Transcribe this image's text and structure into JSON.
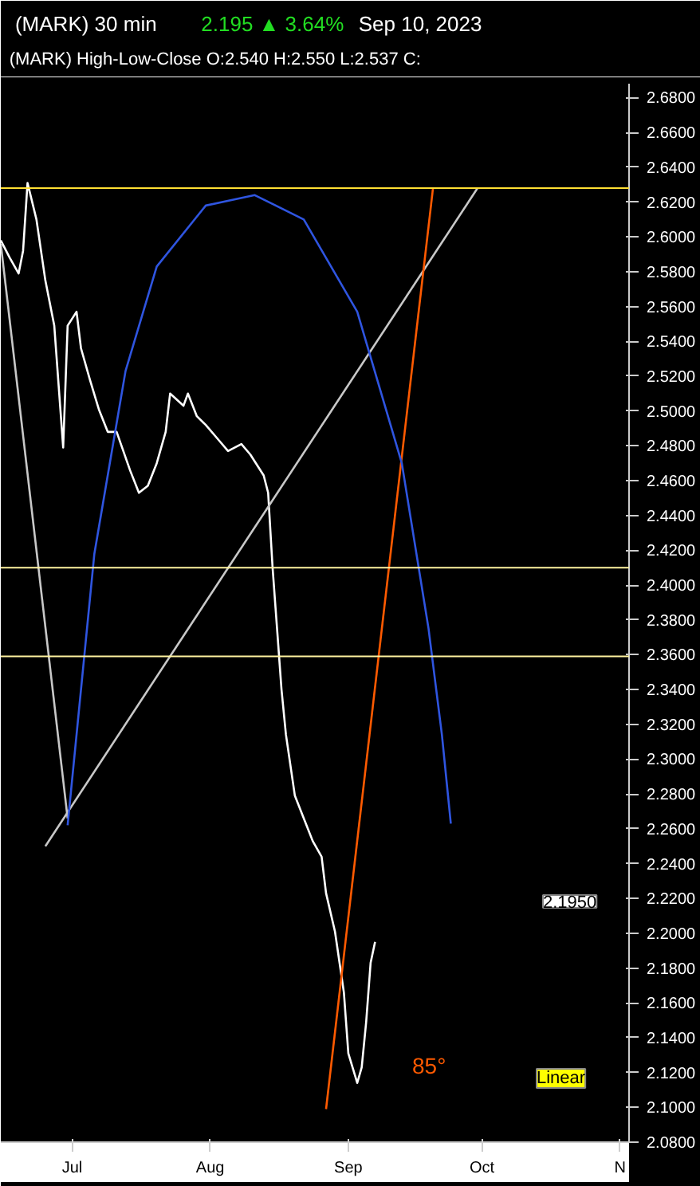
{
  "chart_data": {
    "type": "line",
    "title": "(MARK)   30 min",
    "annotations": [
      "2.195 ▲ 3.64%",
      "Sep 10, 2023",
      "(MARK)  High-Low-Close   O:2.540  H:2.550  L:2.537  C:",
      "2.1950",
      "Linear",
      "85°"
    ],
    "x": [
      "2023-06-15",
      "2023-06-17",
      "2023-06-19",
      "2023-06-20",
      "2023-06-21",
      "2023-06-23",
      "2023-06-25",
      "2023-06-27",
      "2023-06-28",
      "2023-06-29",
      "2023-06-30",
      "2023-07-02",
      "2023-07-03",
      "2023-07-05",
      "2023-07-07",
      "2023-07-09",
      "2023-07-11",
      "2023-07-14",
      "2023-07-16",
      "2023-07-18",
      "2023-07-20",
      "2023-07-22",
      "2023-07-23",
      "2023-07-26",
      "2023-07-27",
      "2023-07-29",
      "2023-07-31",
      "2023-08-03",
      "2023-08-05",
      "2023-08-08",
      "2023-08-10",
      "2023-08-13",
      "2023-08-14",
      "2023-08-15",
      "2023-08-16",
      "2023-08-17",
      "2023-08-18",
      "2023-08-20",
      "2023-08-22",
      "2023-08-24",
      "2023-08-26",
      "2023-08-27",
      "2023-08-29",
      "2023-08-31",
      "2023-09-01",
      "2023-09-03",
      "2023-09-04",
      "2023-09-05",
      "2023-09-06",
      "2023-09-07"
    ],
    "series": [
      {
        "color": "#ffffff",
        "values": [
          2.598,
          2.588,
          2.579,
          2.592,
          2.631,
          2.61,
          2.575,
          2.549,
          2.514,
          2.479,
          2.549,
          2.557,
          2.536,
          2.518,
          2.501,
          2.488,
          2.488,
          2.466,
          2.453,
          2.457,
          2.47,
          2.488,
          2.51,
          2.503,
          2.51,
          2.497,
          2.492,
          2.483,
          2.477,
          2.481,
          2.475,
          2.463,
          2.453,
          2.41,
          2.375,
          2.34,
          2.314,
          2.279,
          2.266,
          2.253,
          2.244,
          2.223,
          2.201,
          2.166,
          2.131,
          2.114,
          2.123,
          2.149,
          2.183,
          2.195
        ]
      },
      {
        "color": "#c8c8c8",
        "x": [
          "2023-06-25",
          "2023-09-30"
        ],
        "values": [
          2.25,
          2.628
        ]
      },
      {
        "color": "#c8c8c8",
        "x": [
          "2023-06-15",
          "2023-06-30"
        ],
        "values": [
          2.596,
          2.266
        ]
      },
      {
        "color": "#ff5a00",
        "x": [
          "2023-08-27",
          "2023-09-20"
        ],
        "values": [
          2.099,
          2.628
        ]
      },
      {
        "color": "#2f55e0",
        "x": [
          "2023-06-30",
          "2023-07-06",
          "2023-07-13",
          "2023-07-20",
          "2023-07-31",
          "2023-08-11",
          "2023-08-22",
          "2023-09-03",
          "2023-09-13",
          "2023-09-19",
          "2023-09-22",
          "2023-09-24"
        ],
        "values": [
          2.262,
          2.418,
          2.523,
          2.583,
          2.618,
          2.624,
          2.61,
          2.557,
          2.47,
          2.375,
          2.314,
          2.263
        ]
      }
    ],
    "ref_lines": [
      {
        "axis": "y",
        "value": 2.628,
        "color": "#ffe033"
      },
      {
        "axis": "y",
        "value": 2.41,
        "color": "#fff3a0"
      },
      {
        "axis": "y",
        "value": 2.359,
        "color": "#fff3a0"
      }
    ],
    "xlim": [
      "2023-06-15",
      "2023-11-03"
    ],
    "xticks": [
      {
        "value": "2023-07-01",
        "label": "Jul"
      },
      {
        "value": "2023-08-01",
        "label": "Aug"
      },
      {
        "value": "2023-09-01",
        "label": "Sep"
      },
      {
        "value": "2023-10-01",
        "label": "Oct"
      },
      {
        "value": "2023-11-01",
        "label": "N"
      }
    ],
    "ylim": [
      2.08,
      2.688
    ],
    "yticks": [
      {
        "value": 2.08,
        "label": "2.0800"
      },
      {
        "value": 2.1,
        "label": "2.1000"
      },
      {
        "value": 2.12,
        "label": "2.1200"
      },
      {
        "value": 2.14,
        "label": "2.1400"
      },
      {
        "value": 2.16,
        "label": "2.1600"
      },
      {
        "value": 2.18,
        "label": "2.1800"
      },
      {
        "value": 2.2,
        "label": "2.2000"
      },
      {
        "value": 2.22,
        "label": "2.2200"
      },
      {
        "value": 2.24,
        "label": "2.2400"
      },
      {
        "value": 2.26,
        "label": "2.2600"
      },
      {
        "value": 2.28,
        "label": "2.2800"
      },
      {
        "value": 2.3,
        "label": "2.3000"
      },
      {
        "value": 2.32,
        "label": "2.3200"
      },
      {
        "value": 2.34,
        "label": "2.3400"
      },
      {
        "value": 2.36,
        "label": "2.3600"
      },
      {
        "value": 2.38,
        "label": "2.3800"
      },
      {
        "value": 2.4,
        "label": "2.4000"
      },
      {
        "value": 2.42,
        "label": "2.4200"
      },
      {
        "value": 2.44,
        "label": "2.4400"
      },
      {
        "value": 2.46,
        "label": "2.4600"
      },
      {
        "value": 2.48,
        "label": "2.4800"
      },
      {
        "value": 2.5,
        "label": "2.5000"
      },
      {
        "value": 2.52,
        "label": "2.5200"
      },
      {
        "value": 2.54,
        "label": "2.5400"
      },
      {
        "value": 2.56,
        "label": "2.5600"
      },
      {
        "value": 2.58,
        "label": "2.5800"
      },
      {
        "value": 2.6,
        "label": "2.6000"
      },
      {
        "value": 2.62,
        "label": "2.6200"
      },
      {
        "value": 2.64,
        "label": "2.6400"
      },
      {
        "value": 2.66,
        "label": "2.6600"
      },
      {
        "value": 2.68,
        "label": "2.6800"
      }
    ]
  }
}
